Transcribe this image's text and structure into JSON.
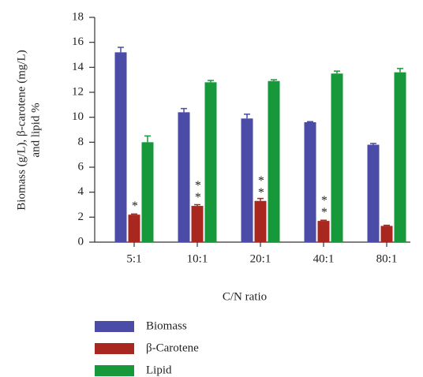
{
  "chart_data": {
    "type": "bar",
    "y_label": [
      "Biomass (g/L), β-carotene (mg/L)",
      "and lipid %"
    ],
    "x_label": "C/N ratio",
    "categories": [
      "5:1",
      "10:1",
      "20:1",
      "40:1",
      "80:1"
    ],
    "series": [
      {
        "name": "Biomass",
        "color": "#4b4ba8",
        "values": [
          15.2,
          10.4,
          9.9,
          9.6,
          7.8
        ],
        "errors": [
          0.4,
          0.3,
          0.35,
          0.05,
          0.1
        ]
      },
      {
        "name": "β-Carotene",
        "color": "#a8281f",
        "values": [
          2.2,
          2.9,
          3.3,
          1.7,
          1.3
        ],
        "errors": [
          0.05,
          0.1,
          0.2,
          0.05,
          0.05
        ],
        "significance": [
          "*",
          "**",
          "**",
          "**",
          null
        ]
      },
      {
        "name": "Lipid",
        "color": "#17983b",
        "values": [
          8.0,
          12.8,
          12.9,
          13.5,
          13.6
        ],
        "errors": [
          0.5,
          0.15,
          0.1,
          0.2,
          0.3
        ]
      }
    ],
    "ylim": [
      0,
      18
    ],
    "yticks": [
      0,
      2,
      4,
      6,
      8,
      10,
      12,
      14,
      16,
      18
    ]
  }
}
